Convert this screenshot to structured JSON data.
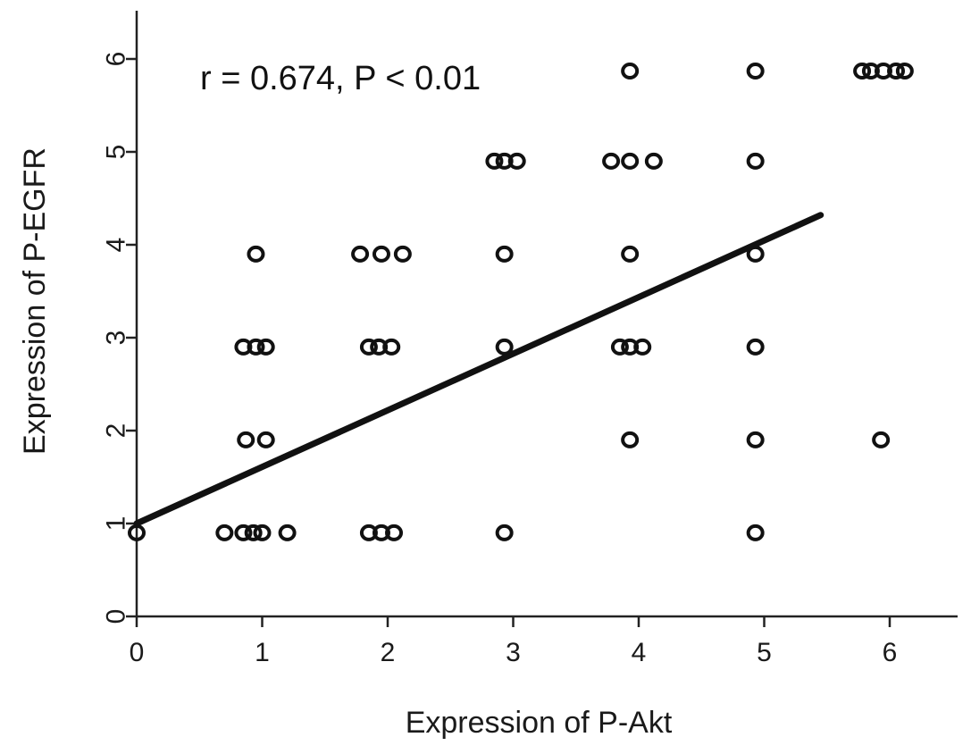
{
  "chart_data": {
    "type": "scatter",
    "title": "",
    "xlabel": "Expression of P-Akt",
    "ylabel": "Expression of P-EGFR",
    "annotation": "r = 0.674, P < 0.01",
    "xlim": [
      0,
      6.5
    ],
    "ylim": [
      0,
      6.5
    ],
    "x_ticks": [
      "0",
      "1",
      "2",
      "3",
      "4",
      "5",
      "6"
    ],
    "y_ticks": [
      "0",
      "1",
      "2",
      "3",
      "4",
      "5",
      "6"
    ],
    "grid": false,
    "legend": "none",
    "marker": "open-circle",
    "colors": {
      "marker": "#111111",
      "line": "#111111",
      "axis": "#222222"
    },
    "points": [
      {
        "x": 0,
        "y": 0.9
      },
      {
        "x": 0.7,
        "y": 0.9
      },
      {
        "x": 0.85,
        "y": 0.9
      },
      {
        "x": 0.93,
        "y": 0.9
      },
      {
        "x": 1.0,
        "y": 0.9
      },
      {
        "x": 1.2,
        "y": 0.9
      },
      {
        "x": 1.85,
        "y": 0.9
      },
      {
        "x": 1.95,
        "y": 0.9
      },
      {
        "x": 2.05,
        "y": 0.9
      },
      {
        "x": 2.93,
        "y": 0.9
      },
      {
        "x": 4.93,
        "y": 0.9
      },
      {
        "x": 0.87,
        "y": 1.9
      },
      {
        "x": 1.03,
        "y": 1.9
      },
      {
        "x": 3.93,
        "y": 1.9
      },
      {
        "x": 4.93,
        "y": 1.9
      },
      {
        "x": 5.93,
        "y": 1.9
      },
      {
        "x": 0.85,
        "y": 2.9
      },
      {
        "x": 0.95,
        "y": 2.9
      },
      {
        "x": 1.03,
        "y": 2.9
      },
      {
        "x": 1.85,
        "y": 2.9
      },
      {
        "x": 1.93,
        "y": 2.9
      },
      {
        "x": 2.03,
        "y": 2.9
      },
      {
        "x": 2.93,
        "y": 2.9
      },
      {
        "x": 3.85,
        "y": 2.9
      },
      {
        "x": 3.93,
        "y": 2.9
      },
      {
        "x": 4.03,
        "y": 2.9
      },
      {
        "x": 4.93,
        "y": 2.9
      },
      {
        "x": 0.95,
        "y": 3.9
      },
      {
        "x": 1.78,
        "y": 3.9
      },
      {
        "x": 1.95,
        "y": 3.9
      },
      {
        "x": 2.12,
        "y": 3.9
      },
      {
        "x": 2.93,
        "y": 3.9
      },
      {
        "x": 3.93,
        "y": 3.9
      },
      {
        "x": 4.93,
        "y": 3.9
      },
      {
        "x": 2.85,
        "y": 4.9
      },
      {
        "x": 2.93,
        "y": 4.9
      },
      {
        "x": 3.03,
        "y": 4.9
      },
      {
        "x": 3.78,
        "y": 4.9
      },
      {
        "x": 3.93,
        "y": 4.9
      },
      {
        "x": 4.12,
        "y": 4.9
      },
      {
        "x": 4.93,
        "y": 4.9
      },
      {
        "x": 3.93,
        "y": 5.87
      },
      {
        "x": 4.93,
        "y": 5.87
      },
      {
        "x": 5.78,
        "y": 5.87
      },
      {
        "x": 5.85,
        "y": 5.87
      },
      {
        "x": 5.95,
        "y": 5.87
      },
      {
        "x": 6.05,
        "y": 5.87
      },
      {
        "x": 6.12,
        "y": 5.87
      }
    ],
    "trendline": {
      "x": [
        0,
        5.45
      ],
      "y": [
        1.0,
        4.32
      ]
    }
  }
}
